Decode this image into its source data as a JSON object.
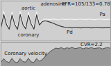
{
  "chart_data": [
    {
      "type": "line",
      "x": [
        0,
        1,
        2,
        3,
        4,
        5,
        6,
        7,
        8,
        9,
        10,
        11,
        12,
        13,
        14,
        15,
        16,
        17,
        18,
        19,
        20,
        21,
        22,
        23,
        24,
        25,
        26,
        27,
        28,
        29,
        30,
        31,
        32,
        33,
        34,
        35,
        36,
        37,
        38,
        39,
        40
      ],
      "xlim": [
        0,
        40
      ],
      "ylim": [
        60,
        195
      ],
      "tick_labels": false,
      "series": [
        {
          "color": "#f4f4f4",
          "values": [
            110,
            160,
            120,
            105,
            158,
            122,
            104,
            160,
            121,
            106,
            157,
            123,
            105,
            159,
            120,
            130,
            134,
            133,
            132,
            134,
            133,
            131,
            134,
            133,
            132,
            134,
            133,
            132,
            133,
            134,
            133,
            132,
            134,
            133,
            132,
            133,
            134,
            133,
            132,
            133,
            133
          ]
        },
        {
          "color": "#3a3a3a",
          "values": [
            105,
            150,
            115,
            100,
            148,
            116,
            99,
            150,
            115,
            101,
            147,
            117,
            100,
            149,
            114,
            125,
            128,
            126,
            123,
            120,
            116,
            112,
            109,
            107,
            106,
            105,
            104,
            106,
            105,
            104,
            105,
            106,
            105,
            104,
            105,
            106,
            105,
            104,
            105,
            105,
            105
          ]
        }
      ],
      "annotations": [
        {
          "text": "adenosine",
          "x": 19,
          "y": 184
        },
        {
          "text": "FFR=105/133=0.78",
          "x": 31,
          "y": 184
        },
        {
          "text": "aortic",
          "x": 10,
          "y": 170
        },
        {
          "text": "coronary",
          "x": 10,
          "y": 80
        },
        {
          "text": "Pa",
          "x": 37,
          "y": 150
        },
        {
          "text": "Pd",
          "x": 25,
          "y": 90
        }
      ]
    },
    {
      "type": "line",
      "x": [
        0,
        1,
        2,
        3,
        4,
        5,
        6,
        7,
        8,
        9,
        10,
        11,
        12,
        13,
        14,
        15,
        16,
        17,
        18,
        19,
        20,
        21,
        22,
        23,
        24,
        25,
        26,
        27,
        28,
        29,
        30,
        31,
        32,
        33,
        34,
        35,
        36,
        37,
        38,
        39,
        40
      ],
      "xlim": [
        0,
        40
      ],
      "ylim": [
        0,
        80
      ],
      "tick_labels": false,
      "series": [
        {
          "type": "area",
          "color": "#555555",
          "values": [
            12,
            24,
            14,
            11,
            25,
            13,
            10,
            24,
            14,
            12,
            25,
            13,
            11,
            24,
            15,
            20,
            30,
            40,
            48,
            55,
            60,
            58,
            62,
            57,
            61,
            59,
            63,
            58,
            60,
            62,
            57,
            61,
            59,
            62,
            58,
            60,
            61,
            57,
            60,
            62,
            59
          ]
        }
      ],
      "annotations": [
        {
          "text": "CVR=2.2",
          "x": 33,
          "y": 72
        },
        {
          "text": "Coronary velocity",
          "x": 9,
          "y": 42
        }
      ]
    }
  ]
}
